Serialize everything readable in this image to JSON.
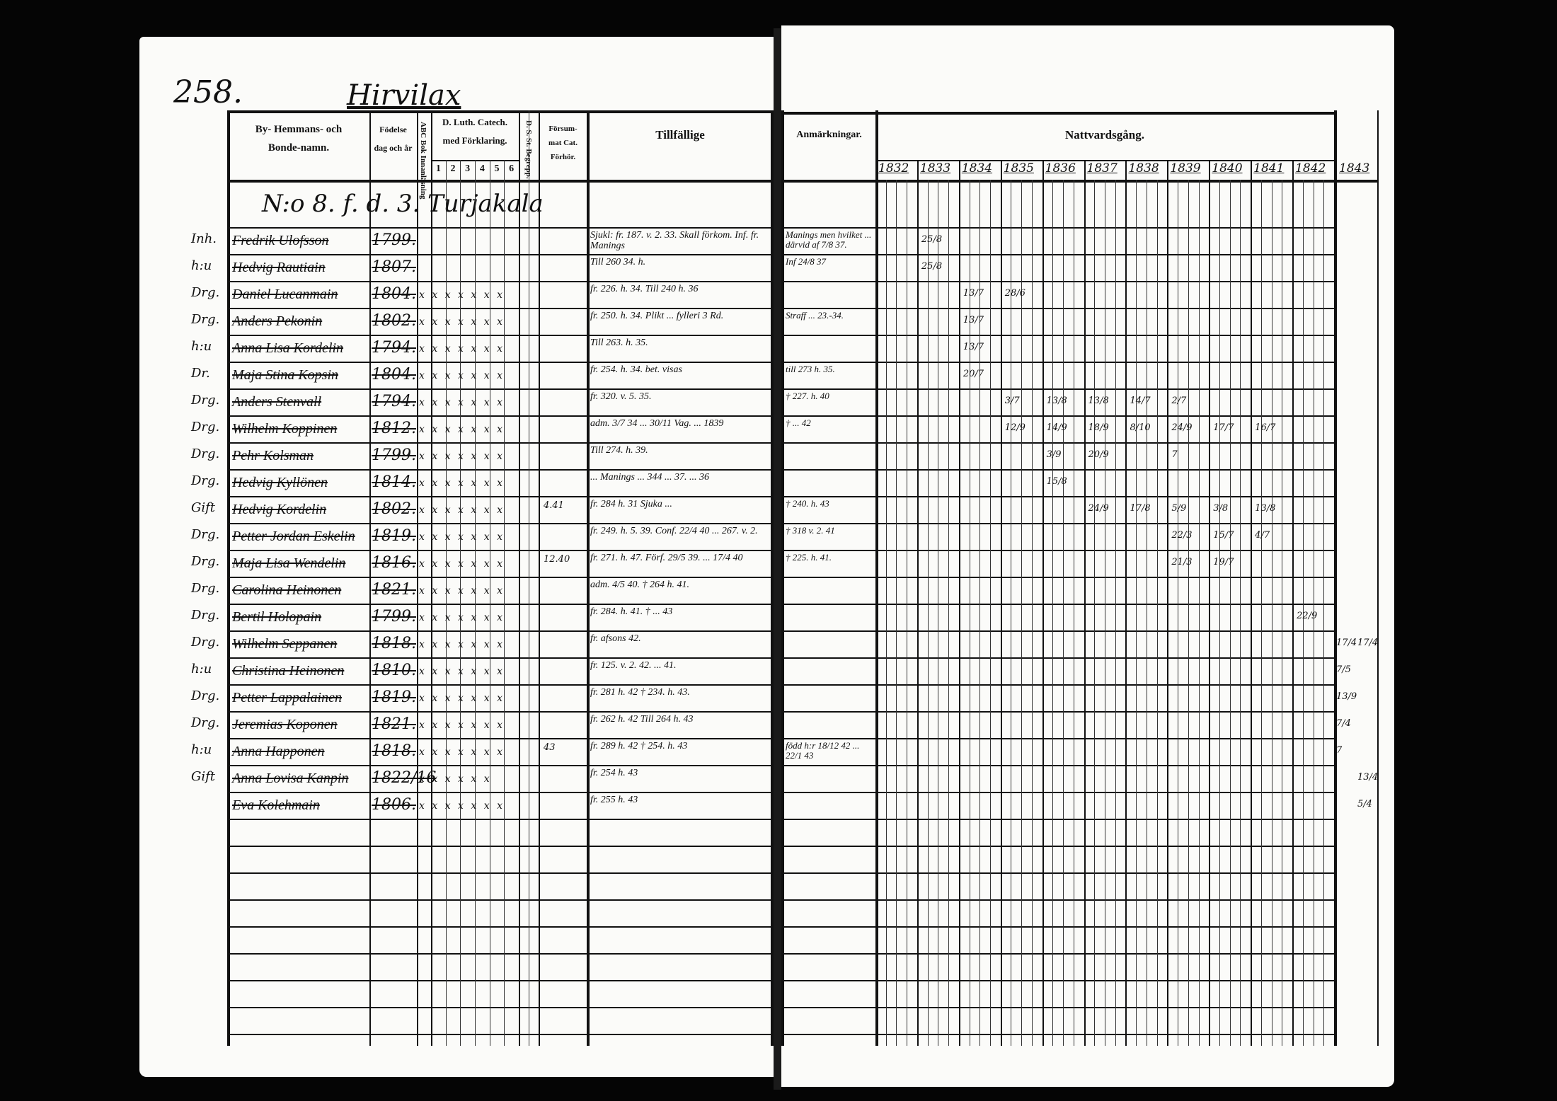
{
  "page_number": "258.",
  "parish": "Hirvilax",
  "header": {
    "name_col": [
      "By- Hemmans- och",
      "Bonde-namn."
    ],
    "birth_col": [
      "Födelse",
      "dag och år"
    ],
    "abc_col": "ABC Bok Innanläsning",
    "catech_col": [
      "D. Luth. Catech.",
      "med Förklaring."
    ],
    "catech_sub": [
      "1",
      "2",
      "3",
      "4",
      "5",
      "6"
    ],
    "ds_col": "D. S. St. Begrepp.",
    "forsum_col": [
      "Försum-",
      "mat Cat.",
      "Förhör."
    ],
    "tillfallige": "Tillfällige",
    "anmarkningar": "Anmärkningar.",
    "nattvard": "Nattvardsgång.",
    "years": [
      "1832",
      "1833",
      "1834",
      "1835",
      "1836",
      "1837",
      "1838",
      "1839",
      "1840",
      "1841",
      "1842",
      "1843"
    ]
  },
  "homestead": "N:o 8. f. d. 3. Turjakala",
  "rows": [
    {
      "prefix": "Inh.",
      "name": "Fredrik Ulofsson",
      "birth": "1799.",
      "catech": "",
      "forsum": "",
      "tillfallige": "Sjukl: fr. 187. v. 2. 33. Skall förkom. Inf. fr. Manings",
      "anmarkningar": "Manings men hvilket ... därvid af 7/8 37.",
      "marks": [
        [
          1,
          "25/8"
        ]
      ]
    },
    {
      "prefix": "h:u",
      "name": "Hedvig Rautiain",
      "birth": "1807.",
      "catech": "",
      "forsum": "",
      "tillfallige": "Till 260 34. h.",
      "anmarkningar": "Inf 24/8 37",
      "marks": [
        [
          1,
          "25/8"
        ]
      ]
    },
    {
      "prefix": "Drg.",
      "name": "Daniel Lucanmain",
      "birth": "1804.",
      "catech": "x x x x x x x",
      "forsum": "",
      "tillfallige": "fr. 226. h. 34. Till 240 h. 36",
      "anmarkningar": "",
      "marks": [
        [
          2,
          "13/7"
        ],
        [
          3,
          "28/6"
        ]
      ]
    },
    {
      "prefix": "Drg.",
      "name": "Anders Pekonin",
      "birth": "1802.",
      "catech": "x x x x x x x",
      "forsum": "",
      "tillfallige": "fr. 250. h. 34. Plikt ... fylleri 3 Rd.",
      "anmarkningar": "Straff ... 23.-34.",
      "marks": [
        [
          2,
          "13/7"
        ]
      ]
    },
    {
      "prefix": "h:u",
      "name": "Anna Lisa Kordelin",
      "birth": "1794.",
      "catech": "x x x x x x x",
      "forsum": "",
      "tillfallige": "Till 263. h. 35.",
      "anmarkningar": "",
      "marks": [
        [
          2,
          "13/7"
        ]
      ]
    },
    {
      "prefix": "Dr.",
      "name": "Maja Stina Kopsin",
      "birth": "1804.",
      "catech": "x x x x x x x",
      "forsum": "",
      "tillfallige": "fr. 254. h. 34. bet. visas",
      "anmarkningar": "till 273 h. 35.",
      "marks": [
        [
          2,
          "20/7"
        ]
      ]
    },
    {
      "prefix": "Drg.",
      "name": "Anders Stenvall",
      "birth": "1794.",
      "catech": "x x x x x x x",
      "forsum": "",
      "tillfallige": "fr. 320. v. 5. 35.",
      "anmarkningar": "† 227. h. 40",
      "marks": [
        [
          3,
          "3/7"
        ],
        [
          4,
          "13/8"
        ],
        [
          5,
          "13/8"
        ],
        [
          6,
          "14/7"
        ],
        [
          7,
          "2/7"
        ]
      ]
    },
    {
      "prefix": "Drg.",
      "name": "Wilhelm Koppinen",
      "birth": "1812.",
      "catech": "x x x x x x x",
      "forsum": "",
      "tillfallige": "adm. 3/7 34 ... 30/11 Vag. ... 1839",
      "anmarkningar": "† ... 42",
      "marks": [
        [
          3,
          "12/9"
        ],
        [
          4,
          "14/9"
        ],
        [
          5,
          "18/9"
        ],
        [
          6,
          "8/10"
        ],
        [
          7,
          "24/9"
        ],
        [
          8,
          "17/7"
        ],
        [
          9,
          "16/7"
        ]
      ]
    },
    {
      "prefix": "Drg.",
      "name": "Pehr Kolsman",
      "birth": "1799.",
      "catech": "x x x x x x x",
      "forsum": "",
      "tillfallige": "Till 274. h. 39.",
      "anmarkningar": "",
      "marks": [
        [
          4,
          "3/9"
        ],
        [
          5,
          "20/9"
        ],
        [
          7,
          "7"
        ]
      ]
    },
    {
      "prefix": "Drg.",
      "name": "Hedvig Kyllönen",
      "birth": "1814.",
      "catech": "x x x x x x x",
      "forsum": "",
      "tillfallige": "... Manings ... 344 ... 37. ... 36",
      "anmarkningar": "",
      "marks": [
        [
          4,
          "15/8"
        ]
      ]
    },
    {
      "prefix": "Gift",
      "name": "Hedvig Kordelin",
      "birth": "1802.",
      "catech": "x x x x x x x",
      "forsum": "4.41",
      "tillfallige": "fr. 284 h. 31 Sjuka ...",
      "anmarkningar": "† 240. h. 43",
      "marks": [
        [
          5,
          "24/9"
        ],
        [
          6,
          "17/8"
        ],
        [
          7,
          "5/9"
        ],
        [
          8,
          "3/8"
        ],
        [
          9,
          "13/8"
        ]
      ]
    },
    {
      "prefix": "Drg.",
      "name": "Petter Jordan Eskelin",
      "birth": "1819.",
      "catech": "x x x x x x x",
      "forsum": "",
      "tillfallige": "fr. 249. h. 5. 39. Conf. 22/4 40 ... 267. v. 2.",
      "anmarkningar": "† 318 v. 2. 41",
      "marks": [
        [
          7,
          "22/3"
        ],
        [
          8,
          "15/7"
        ],
        [
          9,
          "4/7"
        ]
      ]
    },
    {
      "prefix": "Drg.",
      "name": "Maja Lisa Wendelin",
      "birth": "1816.",
      "catech": "x x x x x x x",
      "forsum": "12.40",
      "tillfallige": "fr. 271. h. 47. Förf. 29/5 39. ... 17/4 40",
      "anmarkningar": "† 225. h. 41.",
      "marks": [
        [
          7,
          "21/3"
        ],
        [
          8,
          "19/7"
        ]
      ]
    },
    {
      "prefix": "Drg.",
      "name": "Carolina Heinonen",
      "birth": "1821.",
      "catech": "x x x x x x x",
      "forsum": "",
      "tillfallige": "adm. 4/5 40. † 264 h. 41.",
      "anmarkningar": "",
      "marks": []
    },
    {
      "prefix": "Drg.",
      "name": "Bertil Holopain",
      "birth": "1799.",
      "catech": "x x x x x x x",
      "forsum": "",
      "tillfallige": "fr. 284. h. 41. † ... 43",
      "anmarkningar": "",
      "marks": [
        [
          10,
          "22/9"
        ]
      ]
    },
    {
      "prefix": "Drg.",
      "name": "Wilhelm Seppanen",
      "birth": "1818.",
      "catech": "x x x x x x x",
      "forsum": "",
      "tillfallige": "fr. afsons 42.",
      "anmarkningar": "",
      "marks": [
        [
          11,
          "17/4"
        ],
        [
          12,
          "17/4"
        ]
      ]
    },
    {
      "prefix": "h:u",
      "name": "Christina Heinonen",
      "birth": "1810.",
      "catech": "x x x x x x x",
      "forsum": "",
      "tillfallige": "fr. 125. v. 2. 42. ... 41.",
      "anmarkningar": "",
      "marks": [
        [
          11,
          "7/5"
        ]
      ]
    },
    {
      "prefix": "Drg.",
      "name": "Petter Lappalainen",
      "birth": "1819.",
      "catech": "x x x x x x x",
      "forsum": "",
      "tillfallige": "fr. 281 h. 42 † 234. h. 43.",
      "anmarkningar": "",
      "marks": [
        [
          11,
          "13/9"
        ]
      ]
    },
    {
      "prefix": "Drg.",
      "name": "Jeremias Koponen",
      "birth": "1821.",
      "catech": "x x x x x x x",
      "forsum": "",
      "tillfallige": "fr. 262 h. 42 Till 264 h. 43",
      "anmarkningar": "",
      "marks": [
        [
          11,
          "7/4"
        ]
      ]
    },
    {
      "prefix": "h:u",
      "name": "Anna Happonen",
      "birth": "1818.",
      "catech": "x x x x x x x",
      "forsum": "43",
      "tillfallige": "fr. 289 h. 42 † 254. h. 43",
      "anmarkningar": "född h:r 18/12 42 ... 22/1 43",
      "marks": [
        [
          11,
          "7"
        ]
      ]
    },
    {
      "prefix": "Gift",
      "name": "Anna Lovisa Kanpin",
      "birth": "1822/16",
      "catech": "x x x x x x",
      "forsum": "",
      "tillfallige": "fr. 254 h. 43",
      "anmarkningar": "",
      "marks": [
        [
          12,
          "13/4"
        ]
      ]
    },
    {
      "prefix": "",
      "name": "Eva Kolehmain",
      "birth": "1806.",
      "catech": "x x x x x x x",
      "forsum": "",
      "tillfallige": "fr. 255 h. 43",
      "anmarkningar": "",
      "marks": [
        [
          12,
          "5/4"
        ]
      ]
    }
  ],
  "colors": {
    "background": "#050505",
    "paper": "#fbfbf9",
    "ink": "#111111"
  }
}
